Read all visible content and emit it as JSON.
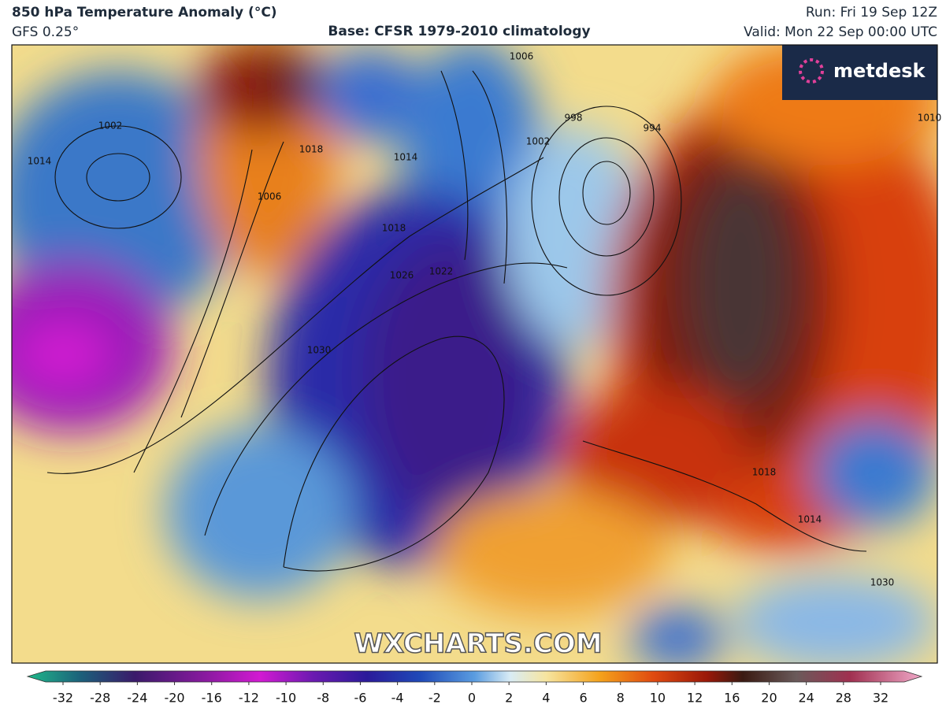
{
  "header": {
    "title": "850 hPa Temperature Anomaly (°C)",
    "model": "GFS 0.25°",
    "base": "Base: CFSR 1979-2010 climatology",
    "run": "Run: Fri 19 Sep 12Z",
    "valid": "Valid: Mon 22 Sep 00:00 UTC"
  },
  "logo": "metdesk",
  "watermark": "WXCHARTS.COM",
  "isobar_labels": [
    1006,
    1002,
    1014,
    1018,
    1006,
    1018,
    1026,
    1022,
    1030,
    1014,
    1002,
    998,
    994,
    1010,
    1018,
    1014,
    1030
  ],
  "colorbar": {
    "ticks": [
      -32,
      -28,
      -24,
      -20,
      -16,
      -12,
      -10,
      -8,
      -6,
      -4,
      -2,
      0,
      2,
      4,
      6,
      8,
      10,
      12,
      16,
      20,
      24,
      28,
      32
    ]
  }
}
